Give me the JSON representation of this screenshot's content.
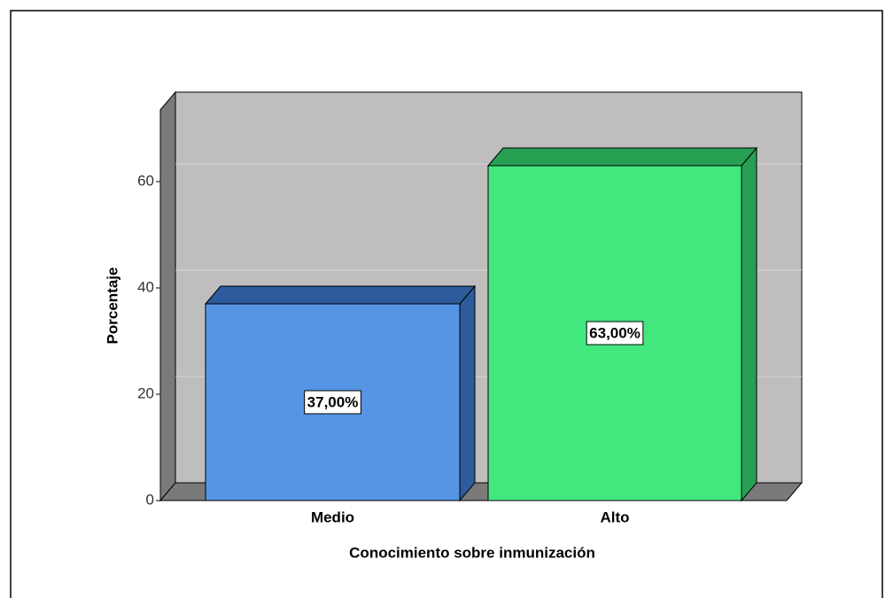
{
  "chart_data": {
    "type": "bar3d",
    "categories": [
      "Medio",
      "Alto"
    ],
    "values": [
      37,
      63
    ],
    "value_labels": [
      "37,00%",
      "63,00%"
    ],
    "colors": [
      "#5595e4",
      "#42e87e"
    ],
    "side_colors": [
      "#2d5b9c",
      "#27a053"
    ],
    "xlabel": "Conocimiento sobre inmunización",
    "ylabel": "Porcentaje",
    "ylim": [
      0,
      73.5
    ],
    "yticks": [
      0,
      20,
      40,
      60
    ],
    "grid": true
  }
}
